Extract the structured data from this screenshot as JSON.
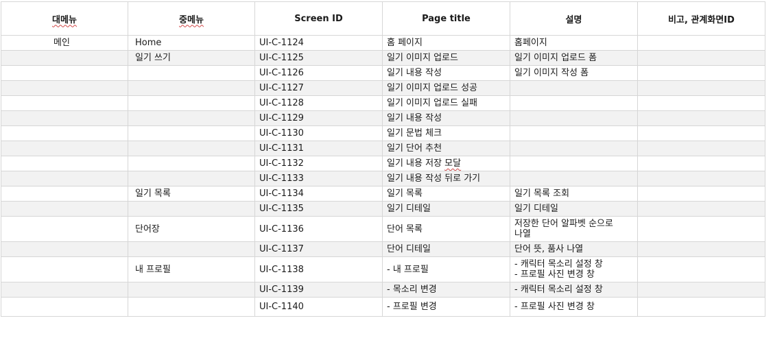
{
  "headers": {
    "main_menu": "대메뉴",
    "sub_menu": "중메뉴",
    "screen_id": "Screen ID",
    "page_title": "Page title",
    "description": "설명",
    "note": "비고, 관계화면ID"
  },
  "rows": [
    {
      "main": "메인",
      "sub": "Home",
      "id": "UI-C-1124",
      "title": "홈 페이지",
      "desc": [
        "홈페이지"
      ]
    },
    {
      "main": "",
      "sub": "일기 쓰기",
      "id": "UI-C-1125",
      "title": "일기 이미지 업로드",
      "desc": [
        "일기 이미지 업로드 폼"
      ]
    },
    {
      "main": "",
      "sub": "",
      "id": "UI-C-1126",
      "title": "일기 내용 작성",
      "desc": [
        "일기 이미지 작성 폼"
      ]
    },
    {
      "main": "",
      "sub": "",
      "id": "UI-C-1127",
      "title": "일기 이미지 업로드 성공",
      "desc": []
    },
    {
      "main": "",
      "sub": "",
      "id": "UI-C-1128",
      "title": "일기 이미지 업로드 실패",
      "desc": []
    },
    {
      "main": "",
      "sub": "",
      "id": "UI-C-1129",
      "title": "일기 내용 작성",
      "desc": []
    },
    {
      "main": "",
      "sub": "",
      "id": "UI-C-1130",
      "title": "일기 문법 체크",
      "desc": []
    },
    {
      "main": "",
      "sub": "",
      "id": "UI-C-1131",
      "title": "일기 단어 추천",
      "desc": []
    },
    {
      "main": "",
      "sub": "",
      "id": "UI-C-1132",
      "title": "일기 내용 저장 모달",
      "desc": []
    },
    {
      "main": "",
      "sub": "",
      "id": "UI-C-1133",
      "title": "일기 내용 작성 뒤로 가기",
      "desc": []
    },
    {
      "main": "",
      "sub": "일기 목록",
      "id": "UI-C-1134",
      "title": "일기 목록",
      "desc": [
        "일기 목록 조회"
      ]
    },
    {
      "main": "",
      "sub": "",
      "id": "UI-C-1135",
      "title": "일기 디테일",
      "desc": [
        "일기 디테일"
      ]
    },
    {
      "main": "",
      "sub": "단어장",
      "id": "UI-C-1136",
      "title": "단어 목록",
      "desc": [
        "저장한 단어 알파벳 순으로",
        "나열"
      ],
      "tall": true
    },
    {
      "main": "",
      "sub": "",
      "id": "UI-C-1137",
      "title": "단어 디테일",
      "desc": [
        "단어 뜻, 품사 나열"
      ]
    },
    {
      "main": "",
      "sub": "내 프로필",
      "id": "UI-C-1138",
      "title": "- 내 프로필",
      "desc": [
        "-   캐릭터 목소리 설정 창",
        "-   프로필 사진 변경 창"
      ],
      "tall": true
    },
    {
      "main": "",
      "sub": "",
      "id": "UI-C-1139",
      "title": "- 목소리 변경",
      "desc": [
        "- 캐릭터 목소리 설정 창"
      ]
    },
    {
      "main": "",
      "sub": "",
      "id": "UI-C-1140",
      "title": "- 프로필 변경",
      "desc": [
        "- 프로필 사진 변경 창"
      ],
      "tall_short": true
    }
  ]
}
